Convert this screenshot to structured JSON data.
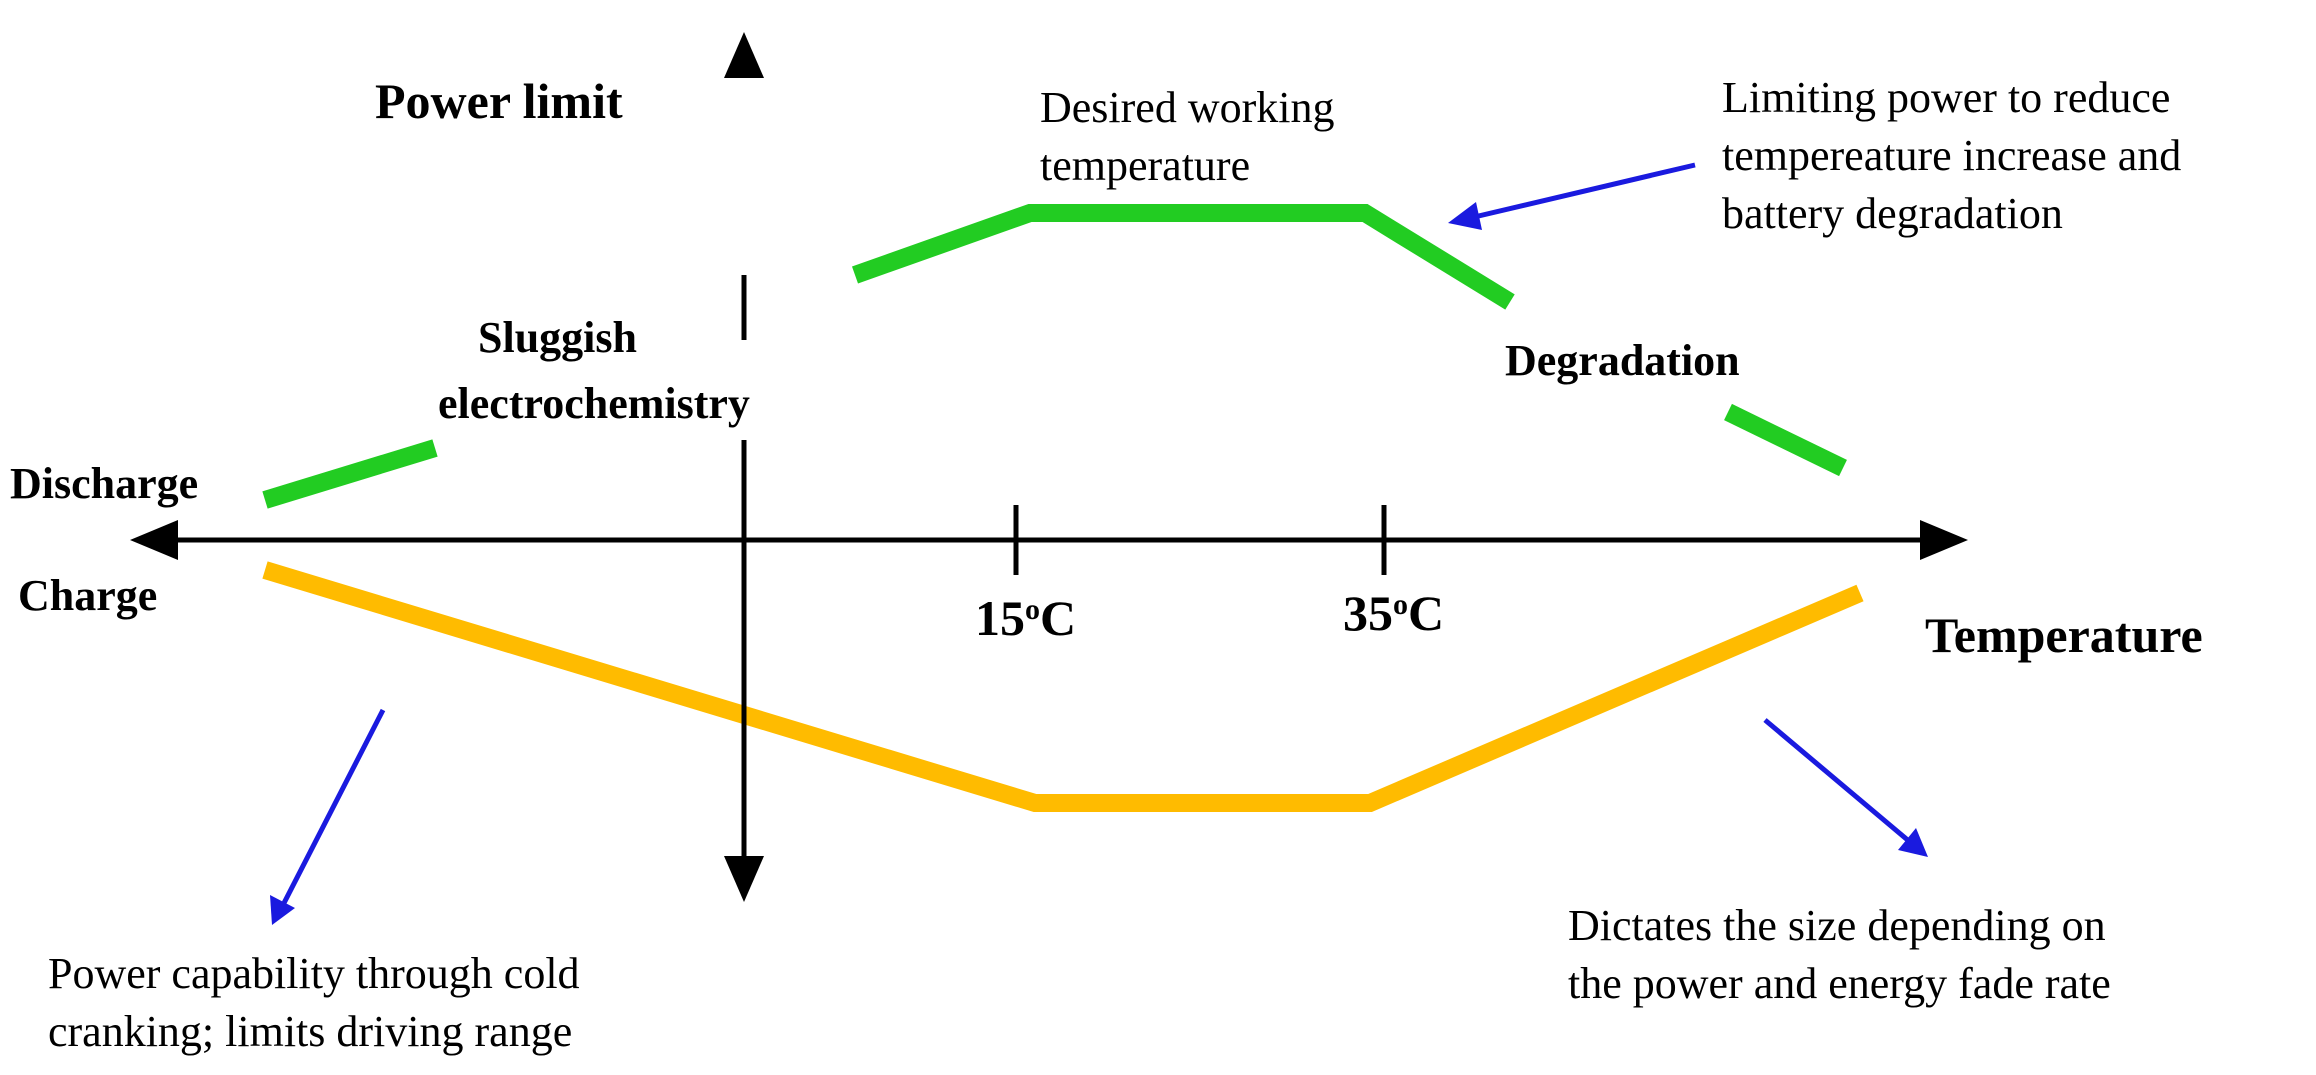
{
  "colors": {
    "discharge_curve": "#22cc22",
    "charge_curve": "#ffbb00",
    "annotation_arrow": "#1a1adf",
    "axis": "#000000"
  },
  "axes": {
    "y_label": "Power limit",
    "x_label": "Temperature",
    "upper_label": "Discharge",
    "lower_label": "Charge"
  },
  "ticks": [
    {
      "label": "15",
      "superscript": "o",
      "unit": "C"
    },
    {
      "label": "35",
      "superscript": "o",
      "unit": "C"
    }
  ],
  "regions": {
    "cold": [
      "Sluggish",
      "electrochemistry"
    ],
    "hot": "Degradation"
  },
  "annotations": {
    "desired": [
      "Desired working",
      "temperature"
    ],
    "limiting": [
      "Limiting power to reduce",
      "tempereature increase and",
      "battery degradation"
    ],
    "cold_cranking": [
      "Power capability through cold",
      "cranking; limits driving range"
    ],
    "sizing": [
      "Dictates the size depending on",
      "the power and energy fade rate"
    ]
  },
  "icons": {
    "axis_arrowheads": "arrowhead-icon",
    "annotation_arrows": "arrow-icon"
  }
}
